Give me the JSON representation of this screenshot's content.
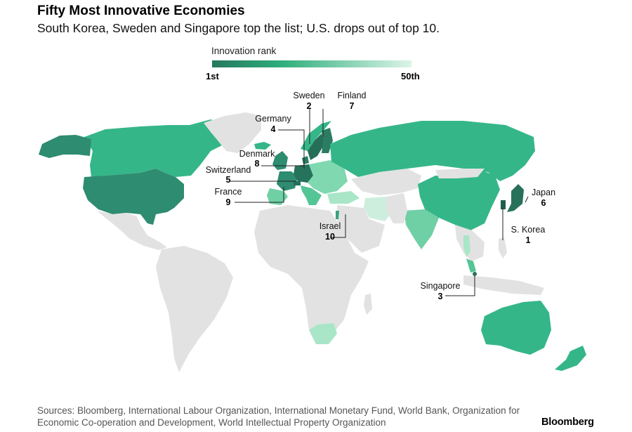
{
  "title": "Fifty Most Innovative Economies",
  "subtitle": "South Korea, Sweden and Singapore top the list; U.S. drops out of top 10.",
  "legend": {
    "title": "Innovation rank",
    "min_label": "1st",
    "max_label": "50th",
    "color_start": "#25785f",
    "color_end": "#dcf5e8"
  },
  "colors": {
    "no_data": "#e2e2e2",
    "callout_line": "#222222",
    "marker": "#2a6e5b"
  },
  "callouts": [
    {
      "name": "Sweden",
      "rank": "2"
    },
    {
      "name": "Finland",
      "rank": "7"
    },
    {
      "name": "Germany",
      "rank": "4"
    },
    {
      "name": "Denmark",
      "rank": "8"
    },
    {
      "name": "Switzerland",
      "rank": "5"
    },
    {
      "name": "France",
      "rank": "9"
    },
    {
      "name": "Israel",
      "rank": "10"
    },
    {
      "name": "Japan",
      "rank": "6"
    },
    {
      "name": "S. Korea",
      "rank": "1"
    },
    {
      "name": "Singapore",
      "rank": "3"
    }
  ],
  "sources": "Sources: Bloomberg, International Labour Organization, International Monetary Fund, World Bank, Organization for Economic Co-operation and Development, World Intellectual Property Organization",
  "brand": "Bloomberg"
}
